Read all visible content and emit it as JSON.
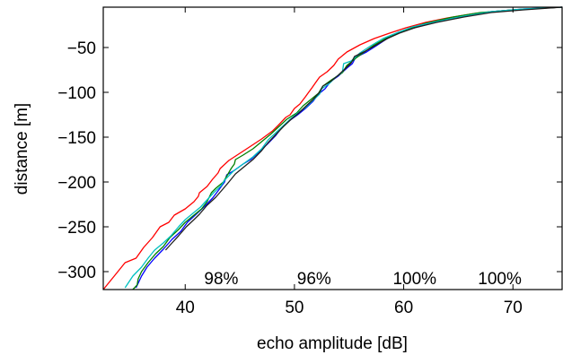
{
  "chart_data": {
    "type": "line",
    "xlabel": "echo amplitude [dB]",
    "ylabel": "distance [m]",
    "xlim": [
      32.5,
      74.5
    ],
    "ylim": [
      -320,
      -5
    ],
    "xticks": [
      40,
      50,
      60,
      70
    ],
    "yticks": [
      -50,
      -100,
      -150,
      -200,
      -250,
      -300
    ],
    "tick_labels": {
      "x": [
        "40",
        "50",
        "60",
        "70"
      ],
      "y": [
        "−50",
        "−100",
        "−150",
        "−200",
        "−250",
        "−300"
      ]
    },
    "grid": false,
    "annotations": [
      {
        "text": "98%",
        "x": 43.3,
        "y": -307
      },
      {
        "text": "96%",
        "x": 51.8,
        "y": -307
      },
      {
        "text": "100%",
        "x": 61.0,
        "y": -307
      },
      {
        "text": "100%",
        "x": 68.8,
        "y": -307
      }
    ],
    "series": [
      {
        "color": "#ff0000",
        "points": [
          [
            32.5,
            -320
          ],
          [
            33.5,
            -305
          ],
          [
            34.5,
            -290
          ],
          [
            35.5,
            -285
          ],
          [
            36.2,
            -273
          ],
          [
            37,
            -262
          ],
          [
            37.7,
            -250
          ],
          [
            38.5,
            -245
          ],
          [
            39,
            -237
          ],
          [
            40,
            -230
          ],
          [
            40.8,
            -222
          ],
          [
            41.2,
            -216
          ],
          [
            41.3,
            -212
          ],
          [
            42,
            -205
          ],
          [
            42.5,
            -197
          ],
          [
            43,
            -190
          ],
          [
            43.2,
            -185
          ],
          [
            44,
            -176
          ],
          [
            45,
            -168
          ],
          [
            46,
            -160
          ],
          [
            47,
            -152
          ],
          [
            48,
            -143
          ],
          [
            48.5,
            -137
          ],
          [
            49.2,
            -128
          ],
          [
            49.6,
            -125
          ],
          [
            50,
            -118
          ],
          [
            50.5,
            -113
          ],
          [
            51,
            -105
          ],
          [
            51.3,
            -100
          ],
          [
            51.6,
            -95
          ],
          [
            52,
            -88
          ],
          [
            52.3,
            -83
          ],
          [
            53,
            -77
          ],
          [
            53.6,
            -70
          ],
          [
            54,
            -63
          ],
          [
            54.8,
            -55
          ],
          [
            56,
            -47
          ],
          [
            57.3,
            -40
          ],
          [
            58.7,
            -34
          ],
          [
            60.2,
            -28
          ],
          [
            62,
            -22
          ],
          [
            64,
            -17
          ],
          [
            66.5,
            -12
          ],
          [
            69,
            -9
          ],
          [
            71.5,
            -7
          ],
          [
            74.5,
            -5
          ]
        ]
      },
      {
        "color": "#0000ff",
        "points": [
          [
            35.5,
            -318
          ],
          [
            36,
            -305
          ],
          [
            36.5,
            -295
          ],
          [
            37.2,
            -285
          ],
          [
            38,
            -275
          ],
          [
            38.8,
            -264
          ],
          [
            39.6,
            -255
          ],
          [
            40.2,
            -245
          ],
          [
            41,
            -236
          ],
          [
            41.8,
            -227
          ],
          [
            42.5,
            -218
          ],
          [
            43,
            -210
          ],
          [
            43.6,
            -200
          ],
          [
            43.8,
            -192
          ],
          [
            44.5,
            -187
          ],
          [
            45.3,
            -180
          ],
          [
            46,
            -175
          ],
          [
            46.7,
            -167
          ],
          [
            47.5,
            -158
          ],
          [
            48.3,
            -148
          ],
          [
            48.8,
            -140
          ],
          [
            49.5,
            -132
          ],
          [
            50.3,
            -125
          ],
          [
            51,
            -118
          ],
          [
            51.7,
            -110
          ],
          [
            52.2,
            -102
          ],
          [
            52.8,
            -96
          ],
          [
            53.3,
            -88
          ],
          [
            54,
            -82
          ],
          [
            54.8,
            -73
          ],
          [
            55.3,
            -68
          ],
          [
            55.6,
            -61
          ],
          [
            56.6,
            -55
          ],
          [
            57.5,
            -48
          ],
          [
            58.5,
            -40
          ],
          [
            59.5,
            -33
          ],
          [
            61,
            -28
          ],
          [
            63,
            -21
          ],
          [
            65.5,
            -15
          ],
          [
            68,
            -10
          ],
          [
            71,
            -7
          ],
          [
            74.5,
            -5
          ]
        ]
      },
      {
        "color": "#008000",
        "points": [
          [
            35.2,
            -320
          ],
          [
            35.6,
            -315
          ],
          [
            35.7,
            -308
          ],
          [
            36,
            -300
          ],
          [
            36.6,
            -290
          ],
          [
            37.3,
            -280
          ],
          [
            38,
            -272
          ],
          [
            38.6,
            -262
          ],
          [
            39.4,
            -253
          ],
          [
            40,
            -245
          ],
          [
            40.8,
            -237
          ],
          [
            41.5,
            -230
          ],
          [
            42,
            -222
          ],
          [
            42.4,
            -212
          ],
          [
            42.8,
            -207
          ],
          [
            43.5,
            -200
          ],
          [
            44.2,
            -185
          ],
          [
            44.5,
            -180
          ],
          [
            44.6,
            -175
          ],
          [
            45.3,
            -170
          ],
          [
            46.2,
            -163
          ],
          [
            47,
            -155
          ],
          [
            47.8,
            -147
          ],
          [
            48.6,
            -138
          ],
          [
            49.3,
            -130
          ],
          [
            50.2,
            -123
          ],
          [
            50.8,
            -115
          ],
          [
            51.5,
            -108
          ],
          [
            52.2,
            -101
          ],
          [
            52.6,
            -93
          ],
          [
            53.4,
            -86
          ],
          [
            54.4,
            -78
          ],
          [
            54.8,
            -70
          ],
          [
            55.6,
            -62
          ],
          [
            56.4,
            -55
          ],
          [
            57.2,
            -48
          ],
          [
            58.2,
            -41
          ],
          [
            59.2,
            -35
          ],
          [
            60.3,
            -30
          ],
          [
            62,
            -23
          ],
          [
            64.5,
            -16
          ],
          [
            67,
            -11
          ],
          [
            70,
            -8
          ],
          [
            74.5,
            -5
          ]
        ]
      },
      {
        "color": "#00c0c0",
        "points": [
          [
            34.5,
            -318
          ],
          [
            35.2,
            -305
          ],
          [
            36,
            -295
          ],
          [
            36.6,
            -285
          ],
          [
            37.2,
            -276
          ],
          [
            38,
            -268
          ],
          [
            38.7,
            -260
          ],
          [
            39.4,
            -250
          ],
          [
            40,
            -242
          ],
          [
            40.7,
            -235
          ],
          [
            41.4,
            -228
          ],
          [
            42,
            -220
          ],
          [
            42.6,
            -212
          ],
          [
            43.3,
            -204
          ],
          [
            43.6,
            -198
          ],
          [
            44.4,
            -188
          ],
          [
            45.3,
            -180
          ],
          [
            46.2,
            -172
          ],
          [
            47,
            -163
          ],
          [
            47.6,
            -153
          ],
          [
            48.3,
            -145
          ],
          [
            49,
            -137
          ],
          [
            49.6,
            -130
          ],
          [
            50.3,
            -123
          ],
          [
            51,
            -117
          ],
          [
            51.6,
            -110
          ],
          [
            52.3,
            -102
          ],
          [
            52.5,
            -96
          ],
          [
            53.2,
            -90
          ],
          [
            53.7,
            -84
          ],
          [
            54.4,
            -77
          ],
          [
            54.5,
            -68
          ],
          [
            55.2,
            -65
          ],
          [
            56,
            -56
          ],
          [
            57,
            -48
          ],
          [
            58.1,
            -40
          ],
          [
            59.3,
            -34
          ],
          [
            60.8,
            -27
          ],
          [
            63,
            -21
          ],
          [
            65.5,
            -15
          ],
          [
            68,
            -10
          ],
          [
            71,
            -7
          ],
          [
            74.5,
            -5
          ]
        ]
      },
      {
        "color": "#202020",
        "points": [
          [
            38.2,
            -276
          ],
          [
            38.8,
            -268
          ],
          [
            39.4,
            -260
          ],
          [
            40.1,
            -250
          ],
          [
            40.8,
            -242
          ],
          [
            41.3,
            -236
          ],
          [
            42,
            -226
          ],
          [
            42.8,
            -217
          ],
          [
            43.3,
            -210
          ],
          [
            44,
            -200
          ],
          [
            44.6,
            -191
          ],
          [
            45.4,
            -183
          ],
          [
            46.2,
            -175
          ],
          [
            47,
            -165
          ],
          [
            47.6,
            -156
          ],
          [
            48.3,
            -147
          ],
          [
            49,
            -138
          ],
          [
            49.7,
            -130
          ],
          [
            50.4,
            -123
          ],
          [
            51,
            -116
          ],
          [
            51.7,
            -108
          ],
          [
            52.3,
            -100
          ],
          [
            52.6,
            -93
          ],
          [
            53.3,
            -88
          ],
          [
            54,
            -81
          ],
          [
            54.7,
            -73
          ],
          [
            55.2,
            -67
          ],
          [
            55.5,
            -60
          ],
          [
            56.5,
            -54
          ],
          [
            57.5,
            -47
          ],
          [
            58.5,
            -40
          ],
          [
            59.6,
            -34
          ],
          [
            61,
            -28
          ],
          [
            63,
            -22
          ],
          [
            65.5,
            -16
          ],
          [
            68,
            -11
          ],
          [
            71,
            -8
          ],
          [
            74.5,
            -5
          ]
        ]
      }
    ]
  }
}
